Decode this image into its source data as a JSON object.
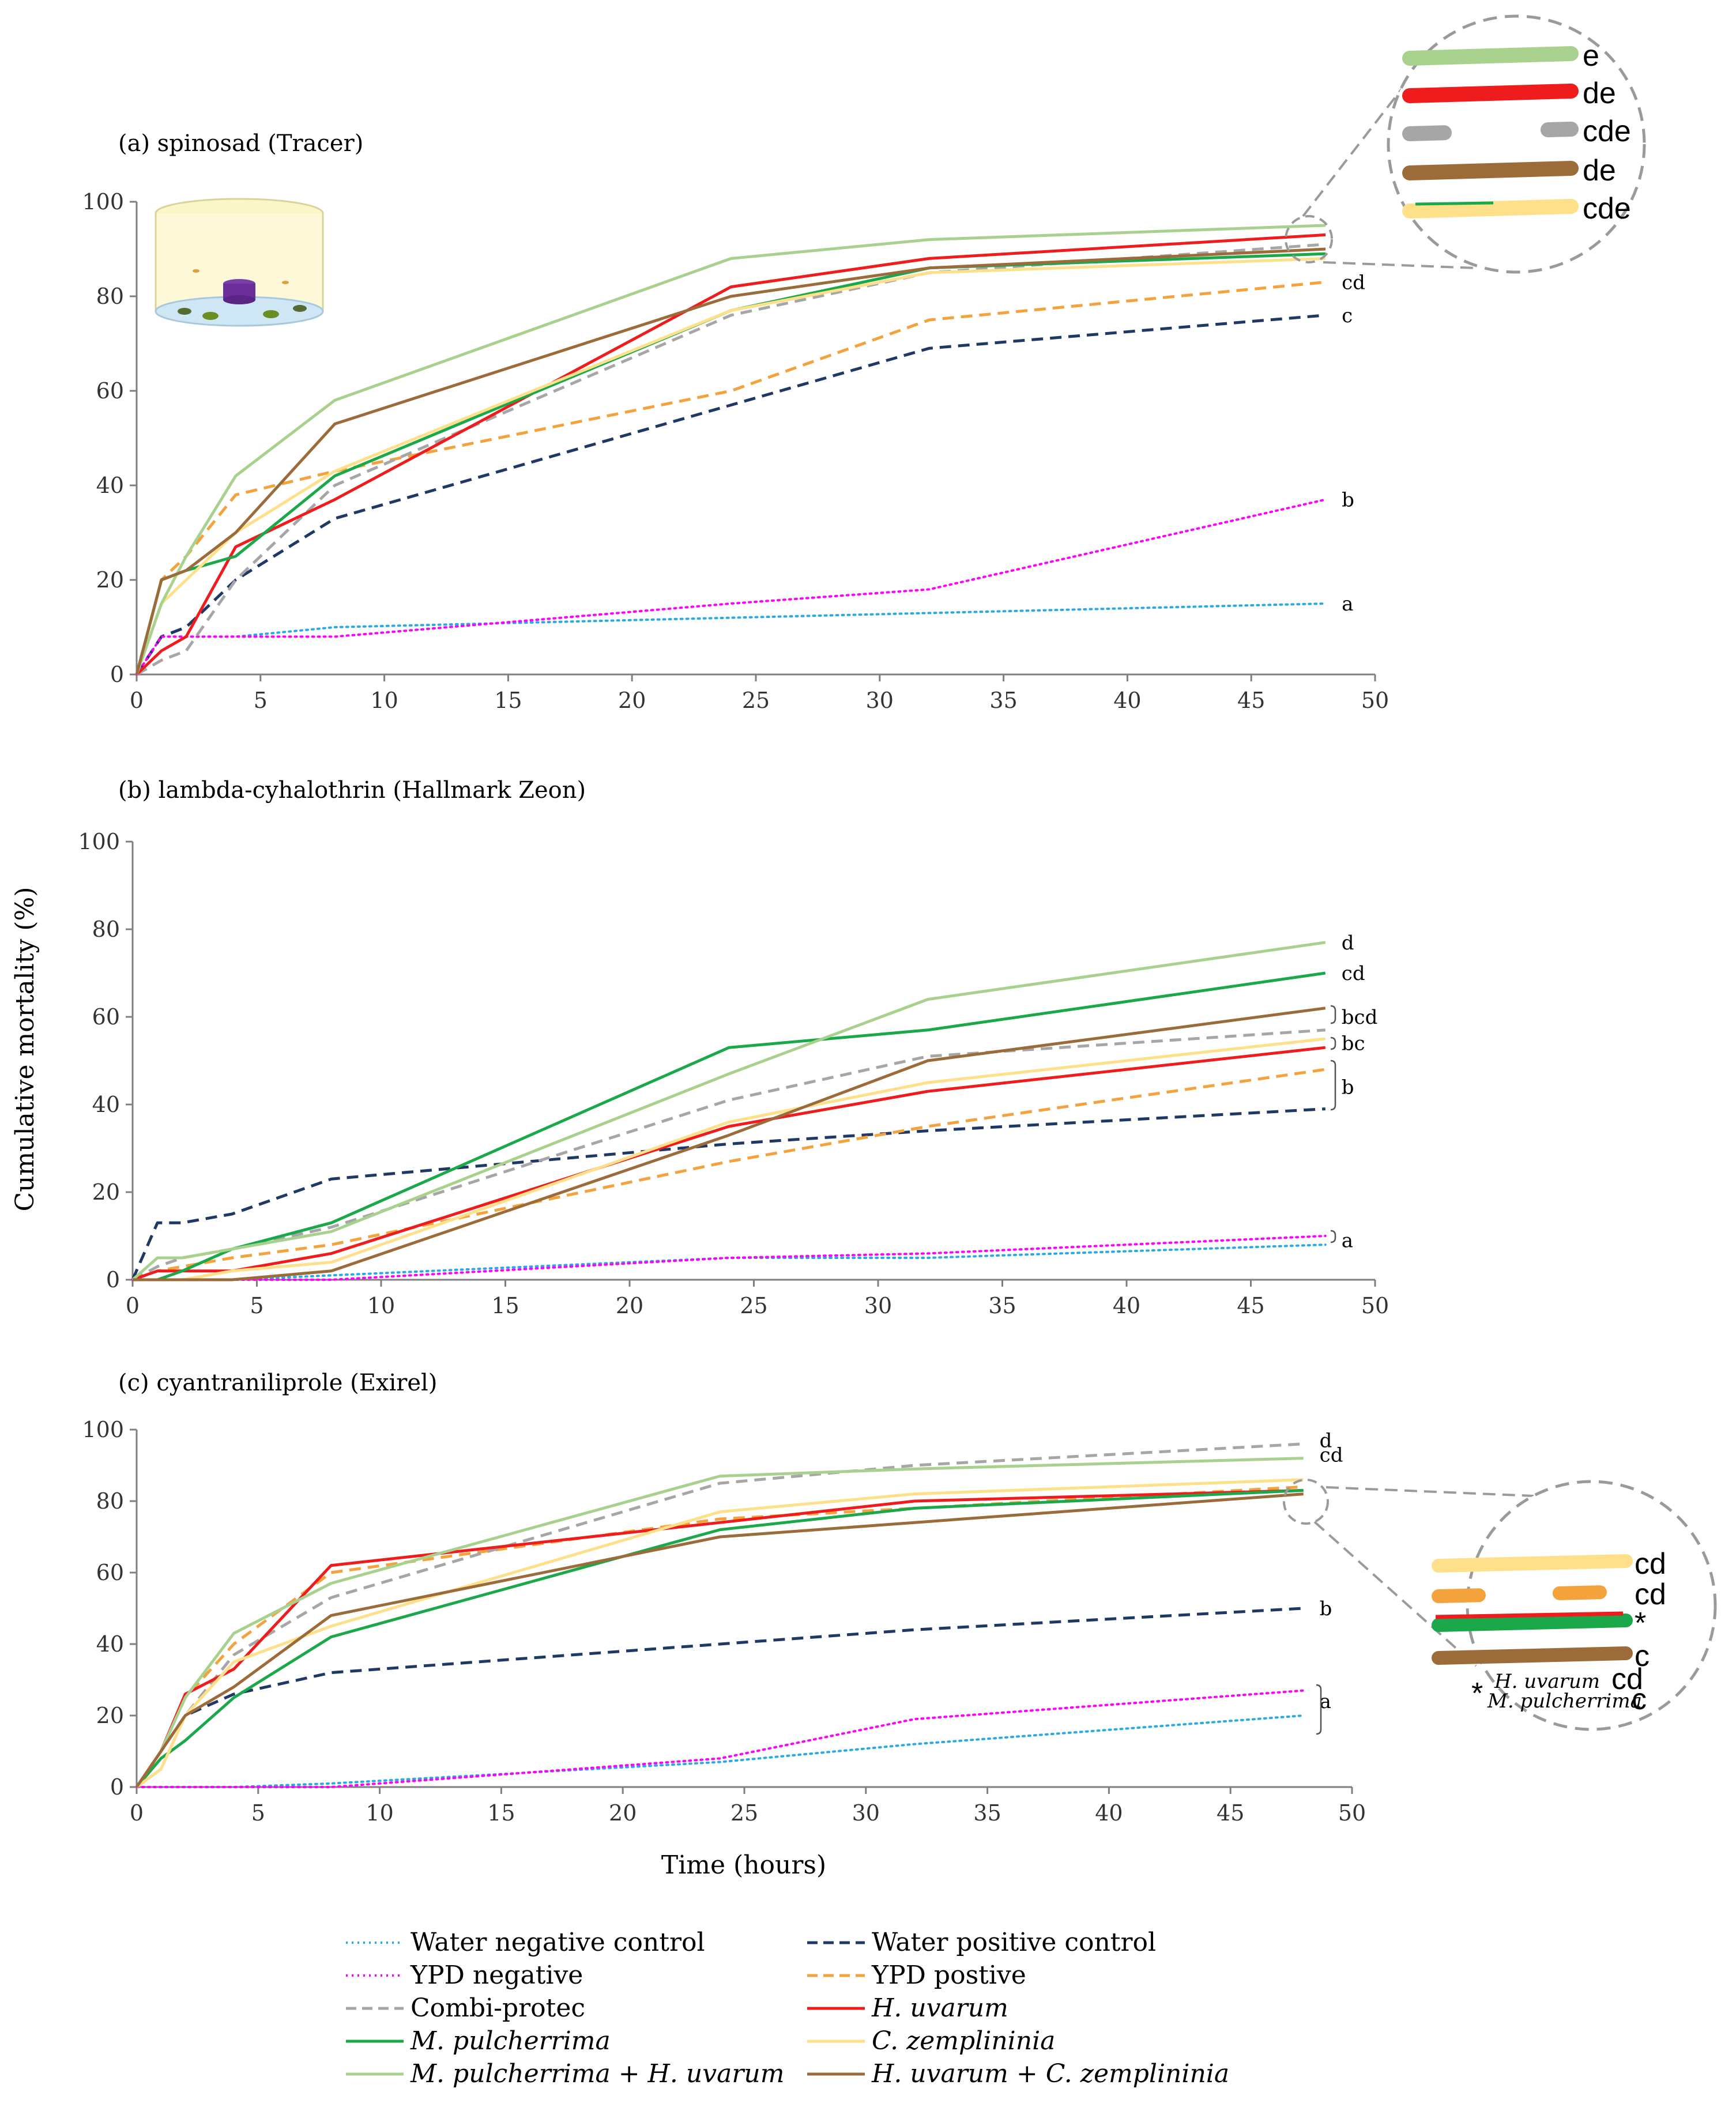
{
  "figure": {
    "ylabel": "Cumulative mortality (%)",
    "xlabel": "Time (hours)"
  },
  "series_styles": [
    {
      "key": "water_neg",
      "name": "Water negative control",
      "color": "#29abe2",
      "dash": "dot",
      "italic": false
    },
    {
      "key": "water_pos",
      "name": "Water positive control",
      "color": "#1f3864",
      "dash": "dash",
      "italic": false
    },
    {
      "key": "ypd_neg",
      "name": "YPD negative",
      "color": "#ff00ff",
      "dash": "dot",
      "italic": false
    },
    {
      "key": "ypd_pos",
      "name": "YPD postive",
      "color": "#f4a23c",
      "dash": "dash",
      "italic": false
    },
    {
      "key": "combi",
      "name": "Combi-protec",
      "color": "#a6a6a6",
      "dash": "dash",
      "italic": false
    },
    {
      "key": "huv",
      "name": "H. uvarum",
      "color": "#ee1c1c",
      "dash": "solid",
      "italic": true
    },
    {
      "key": "mpul",
      "name": "M. pulcherrima",
      "color": "#1aa84a",
      "dash": "solid",
      "italic": true
    },
    {
      "key": "czem",
      "name": "C. zemplininia",
      "color": "#ffe08a",
      "dash": "solid",
      "italic": true
    },
    {
      "key": "mpul_huv",
      "name": "M. pulcherrima + H. uvarum",
      "color": "#a9d18e",
      "dash": "solid",
      "italic": true
    },
    {
      "key": "huv_czem",
      "name": "H. uvarum + C. zemplininia",
      "color": "#9c6b3a",
      "dash": "solid",
      "italic": true
    }
  ],
  "chart_data": [
    {
      "type": "line",
      "title": "(a) spinosad  (Tracer)",
      "xlabel": "Time (hours)",
      "ylabel": "Cumulative mortality (%)",
      "xlim": [
        0,
        50
      ],
      "ylim": [
        0,
        100
      ],
      "xticks": [
        0,
        5,
        10,
        15,
        20,
        25,
        30,
        35,
        40,
        45,
        50
      ],
      "yticks": [
        0,
        20,
        40,
        60,
        80,
        100
      ],
      "x": [
        0,
        1,
        2,
        4,
        8,
        24,
        32,
        48
      ],
      "series": [
        {
          "key": "water_neg",
          "values": [
            0,
            8,
            8,
            8,
            10,
            12,
            13,
            15
          ]
        },
        {
          "key": "water_pos",
          "values": [
            0,
            8,
            10,
            20,
            33,
            57,
            69,
            76
          ]
        },
        {
          "key": "ypd_neg",
          "values": [
            0,
            8,
            8,
            8,
            8,
            15,
            18,
            37
          ]
        },
        {
          "key": "ypd_pos",
          "values": [
            0,
            20,
            25,
            38,
            43,
            60,
            75,
            83
          ]
        },
        {
          "key": "combi",
          "values": [
            0,
            3,
            5,
            20,
            40,
            76,
            85,
            91
          ]
        },
        {
          "key": "huv",
          "values": [
            0,
            5,
            8,
            27,
            37,
            82,
            88,
            93
          ]
        },
        {
          "key": "mpul",
          "values": [
            0,
            20,
            22,
            25,
            42,
            77,
            86,
            89
          ]
        },
        {
          "key": "czem",
          "values": [
            0,
            15,
            20,
            30,
            43,
            77,
            85,
            88
          ]
        },
        {
          "key": "mpul_huv",
          "values": [
            0,
            15,
            25,
            42,
            58,
            88,
            92,
            95
          ]
        },
        {
          "key": "huv_czem",
          "values": [
            0,
            20,
            22,
            30,
            53,
            80,
            86,
            90
          ]
        }
      ],
      "annotations": [
        {
          "text": "cd",
          "x": 48,
          "y": 83
        },
        {
          "text": "c",
          "x": 48,
          "y": 76
        },
        {
          "text": "b",
          "x": 48,
          "y": 37
        },
        {
          "text": "a",
          "x": 48,
          "y": 15
        }
      ]
    },
    {
      "type": "line",
      "title": "(b) lambda-cyhalothrin  (Hallmark Zeon)",
      "xlabel": "Time (hours)",
      "ylabel": "Cumulative mortality (%)",
      "xlim": [
        0,
        50
      ],
      "ylim": [
        0,
        100
      ],
      "xticks": [
        0,
        5,
        10,
        15,
        20,
        25,
        30,
        35,
        40,
        45,
        50
      ],
      "yticks": [
        0,
        20,
        40,
        60,
        80,
        100
      ],
      "x": [
        0,
        1,
        2,
        4,
        8,
        24,
        32,
        48
      ],
      "series": [
        {
          "key": "water_neg",
          "values": [
            0,
            0,
            0,
            0,
            1,
            5,
            5,
            8
          ]
        },
        {
          "key": "water_pos",
          "values": [
            0,
            13,
            13,
            15,
            23,
            31,
            34,
            39
          ]
        },
        {
          "key": "ypd_neg",
          "values": [
            0,
            0,
            0,
            0,
            0,
            5,
            6,
            10
          ]
        },
        {
          "key": "ypd_pos",
          "values": [
            0,
            2,
            3,
            5,
            8,
            27,
            35,
            48
          ]
        },
        {
          "key": "combi",
          "values": [
            0,
            3,
            5,
            7,
            12,
            41,
            51,
            57
          ]
        },
        {
          "key": "huv",
          "values": [
            0,
            2,
            2,
            2,
            6,
            35,
            43,
            53
          ]
        },
        {
          "key": "mpul",
          "values": [
            0,
            0,
            2,
            7,
            13,
            53,
            57,
            70
          ]
        },
        {
          "key": "czem",
          "values": [
            0,
            0,
            0,
            2,
            4,
            36,
            45,
            55
          ]
        },
        {
          "key": "mpul_huv",
          "values": [
            0,
            5,
            5,
            7,
            11,
            47,
            64,
            77
          ]
        },
        {
          "key": "huv_czem",
          "values": [
            0,
            0,
            0,
            0,
            2,
            33,
            50,
            62
          ]
        }
      ],
      "annotations": [
        {
          "text": "d",
          "x": 48,
          "y": 77
        },
        {
          "text": "cd",
          "x": 48,
          "y": 70
        },
        {
          "text": "bcd",
          "x": 48,
          "y": 60
        },
        {
          "text": "bc",
          "x": 48,
          "y": 54
        },
        {
          "text": "b",
          "x": 48,
          "y": 44
        },
        {
          "text": "a",
          "x": 48,
          "y": 9
        }
      ]
    },
    {
      "type": "line",
      "title": "(c)  cyantraniliprole  (Exirel)",
      "xlabel": "Time (hours)",
      "ylabel": "Cumulative mortality (%)",
      "xlim": [
        0,
        50
      ],
      "ylim": [
        0,
        100
      ],
      "xticks": [
        0,
        5,
        10,
        15,
        20,
        25,
        30,
        35,
        40,
        45,
        50
      ],
      "yticks": [
        0,
        20,
        40,
        60,
        80,
        100
      ],
      "x": [
        0,
        1,
        2,
        4,
        8,
        24,
        32,
        48
      ],
      "series": [
        {
          "key": "water_neg",
          "values": [
            0,
            0,
            0,
            0,
            1,
            7,
            12,
            20
          ]
        },
        {
          "key": "water_pos",
          "values": [
            0,
            10,
            20,
            26,
            32,
            40,
            44,
            50
          ]
        },
        {
          "key": "ypd_neg",
          "values": [
            0,
            0,
            0,
            0,
            0,
            8,
            19,
            27
          ]
        },
        {
          "key": "ypd_pos",
          "values": [
            0,
            10,
            25,
            40,
            60,
            75,
            78,
            84
          ]
        },
        {
          "key": "combi",
          "values": [
            0,
            5,
            20,
            37,
            53,
            85,
            90,
            96
          ]
        },
        {
          "key": "huv",
          "values": [
            0,
            10,
            26,
            33,
            62,
            74,
            80,
            83
          ]
        },
        {
          "key": "mpul",
          "values": [
            0,
            8,
            13,
            25,
            42,
            72,
            78,
            83
          ]
        },
        {
          "key": "czem",
          "values": [
            0,
            5,
            20,
            35,
            45,
            77,
            82,
            86
          ]
        },
        {
          "key": "mpul_huv",
          "values": [
            0,
            10,
            25,
            43,
            57,
            87,
            89,
            92
          ]
        },
        {
          "key": "huv_czem",
          "values": [
            0,
            10,
            20,
            28,
            48,
            70,
            74,
            82
          ]
        }
      ],
      "annotations": [
        {
          "text": "d",
          "x": 48,
          "y": 97
        },
        {
          "text": "cd",
          "x": 48,
          "y": 93
        },
        {
          "text": "b",
          "x": 48,
          "y": 50
        },
        {
          "text": "a",
          "x": 48,
          "y": 24
        }
      ]
    }
  ],
  "zoom_a": {
    "rows": [
      {
        "label": "e",
        "key": "mpul_huv"
      },
      {
        "label": "de",
        "key": "huv"
      },
      {
        "label": "cde",
        "key": "combi"
      },
      {
        "label": "de",
        "key": "huv_czem"
      },
      {
        "label": "cde",
        "key": "czem"
      }
    ]
  },
  "zoom_c": {
    "rows": [
      {
        "label": "cd",
        "key": "czem"
      },
      {
        "label": "cd",
        "key": "ypd_pos"
      },
      {
        "label": "*",
        "key": "mpul"
      },
      {
        "label": "c",
        "key": "huv_czem"
      }
    ],
    "footnote_star": "*",
    "footnote_huv": "H. uvarum",
    "footnote_huv_sig": "cd",
    "footnote_mpul": "M. pulcherrima",
    "footnote_mpul_sig": "c"
  }
}
